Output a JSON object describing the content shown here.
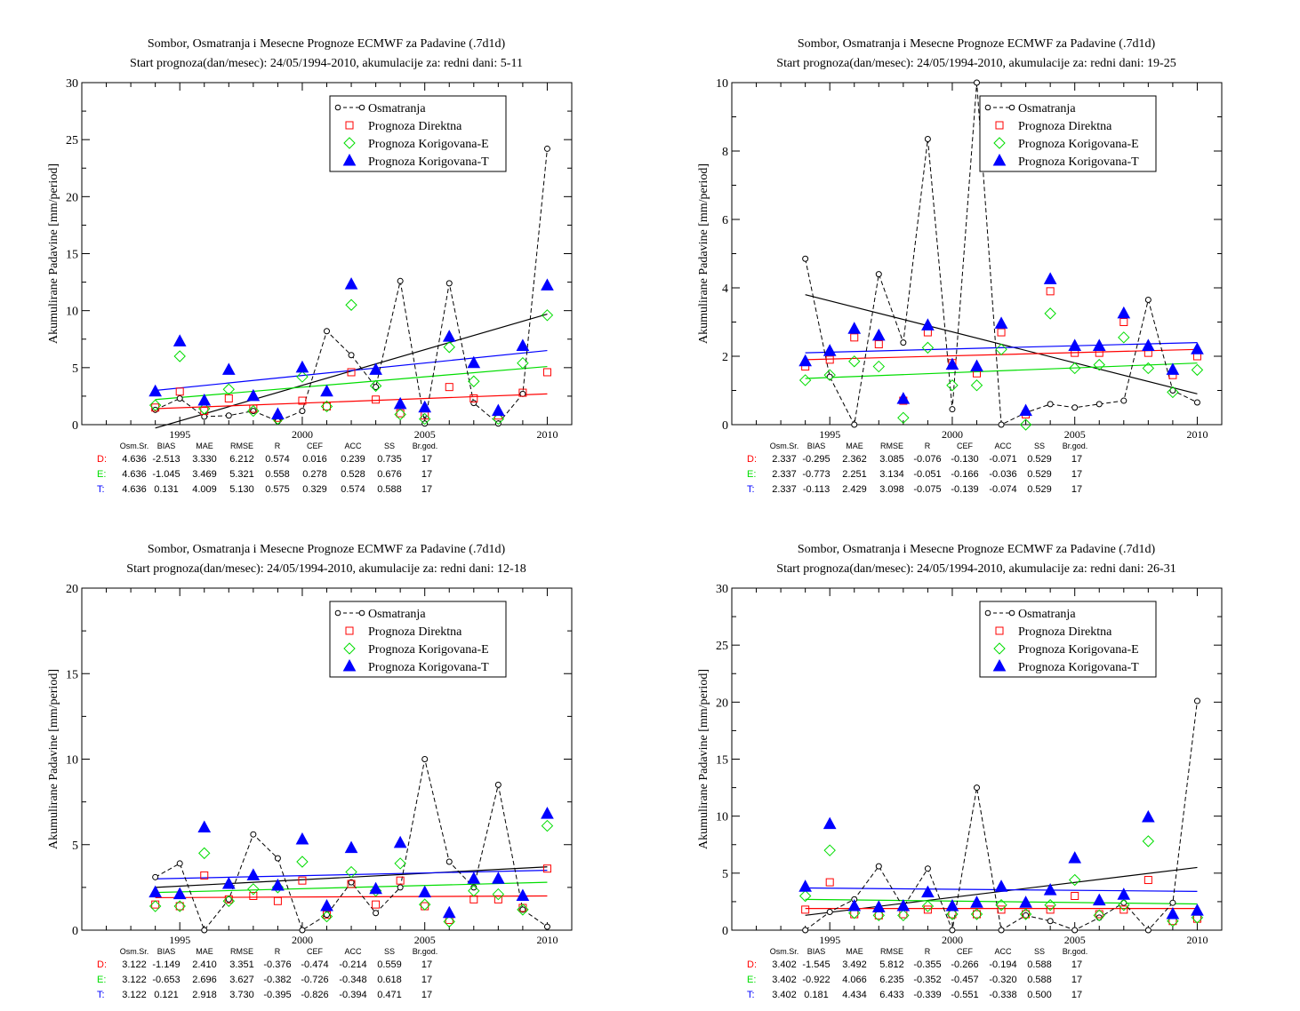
{
  "colors": {
    "osm": "#000000",
    "direct": "#ff0000",
    "korE": "#00dd00",
    "korT": "#0000ff"
  },
  "legend": [
    "Osmatranja",
    "Prognoza Direktna",
    "Prognoza Korigovana-E",
    "Prognoza Korigovana-T"
  ],
  "stat_headers": [
    "Osm.Sr.",
    "BIAS",
    "MAE",
    "RMSE",
    "R",
    "CEF",
    "ACC",
    "SS",
    "Br.god."
  ],
  "chart_data": [
    {
      "type": "scatter",
      "title": "Sombor, Osmatranja i Mesecne Prognoze ECMWF za Padavine (.7d1d)",
      "subtitle": "Start prognoza(dan/mesec): 24/05/1994-2010, akumulacije za: redni dani: 5-11",
      "ylabel": "Akumulirane Padavine [mm/period]",
      "xlim": [
        1991,
        2011
      ],
      "ylim": [
        0,
        30
      ],
      "xticks": [
        1995,
        2000,
        2005,
        2010
      ],
      "yticks": [
        0,
        5,
        10,
        15,
        20,
        25,
        30
      ],
      "x": [
        1994,
        1995,
        1996,
        1997,
        1998,
        1999,
        2000,
        2001,
        2002,
        2003,
        2004,
        2005,
        2006,
        2007,
        2008,
        2009,
        2010
      ],
      "series": [
        {
          "name": "Osmatranja",
          "values": [
            1.3,
            2.3,
            0.7,
            0.8,
            1.2,
            0.3,
            1.2,
            8.2,
            6.1,
            3.3,
            12.6,
            0.1,
            12.4,
            1.9,
            0.1,
            2.7,
            24.2
          ]
        },
        {
          "name": "Prognoza Direktna",
          "values": [
            1.5,
            2.9,
            1.2,
            2.3,
            1.4,
            0.6,
            2.1,
            1.6,
            4.6,
            2.2,
            1.0,
            0.8,
            3.3,
            2.3,
            0.8,
            2.8,
            4.6
          ]
        },
        {
          "name": "Prognoza Korigovana-E",
          "values": [
            1.7,
            6.0,
            1.4,
            3.1,
            1.2,
            0.5,
            4.2,
            1.6,
            10.5,
            3.4,
            0.9,
            0.5,
            6.8,
            3.8,
            0.5,
            5.4,
            9.6
          ]
        },
        {
          "name": "Prognoza Korigovana-T",
          "values": [
            2.9,
            7.3,
            2.1,
            4.8,
            2.5,
            0.9,
            5.0,
            2.9,
            12.3,
            4.8,
            1.8,
            1.5,
            7.7,
            5.4,
            1.2,
            6.9,
            12.2
          ]
        }
      ],
      "trends": {
        "osm": [
          -0.3,
          9.7
        ],
        "direct": [
          1.4,
          2.7
        ],
        "korE": [
          2.2,
          5.1
        ],
        "korT": [
          3.0,
          6.5
        ]
      },
      "stats": {
        "D": [
          "4.636",
          "-2.513",
          "3.330",
          "6.212",
          "0.574",
          "0.016",
          "0.239",
          "0.735",
          "17"
        ],
        "E": [
          "4.636",
          "-1.045",
          "3.469",
          "5.321",
          "0.558",
          "0.278",
          "0.528",
          "0.676",
          "17"
        ],
        "T": [
          "4.636",
          "0.131",
          "4.009",
          "5.130",
          "0.575",
          "0.329",
          "0.574",
          "0.588",
          "17"
        ]
      }
    },
    {
      "type": "scatter",
      "title": "Sombor, Osmatranja i Mesecne Prognoze ECMWF za Padavine (.7d1d)",
      "subtitle": "Start prognoza(dan/mesec): 24/05/1994-2010, akumulacije za: redni dani: 19-25",
      "ylabel": "Akumulirane Padavine [mm/period]",
      "xlim": [
        1991,
        2011
      ],
      "ylim": [
        0,
        10
      ],
      "xticks": [
        1995,
        2000,
        2005,
        2010
      ],
      "yticks": [
        0,
        2,
        4,
        6,
        8,
        10
      ],
      "x": [
        1994,
        1995,
        1996,
        1997,
        1998,
        1999,
        2000,
        2001,
        2002,
        2003,
        2004,
        2005,
        2006,
        2007,
        2008,
        2009,
        2010
      ],
      "series": [
        {
          "name": "Osmatranja",
          "values": [
            4.85,
            1.4,
            0.0,
            4.4,
            2.4,
            8.35,
            0.45,
            10.0,
            0.0,
            0.35,
            0.6,
            0.5,
            0.6,
            0.7,
            3.65,
            1.0,
            0.65
          ]
        },
        {
          "name": "Prognoza Direktna",
          "values": [
            1.7,
            1.9,
            2.55,
            2.35,
            0.7,
            2.7,
            1.8,
            1.5,
            2.7,
            0.3,
            3.9,
            2.1,
            2.1,
            3.0,
            2.1,
            1.45,
            2.0
          ]
        },
        {
          "name": "Prognoza Korigovana-E",
          "values": [
            1.3,
            1.45,
            1.85,
            1.7,
            0.2,
            2.25,
            1.15,
            1.15,
            2.2,
            0.0,
            3.25,
            1.65,
            1.75,
            2.55,
            1.65,
            0.95,
            1.6
          ]
        },
        {
          "name": "Prognoza Korigovana-T",
          "values": [
            1.85,
            2.15,
            2.8,
            2.6,
            0.75,
            2.9,
            1.75,
            1.7,
            2.95,
            0.4,
            4.25,
            2.3,
            2.3,
            3.25,
            2.3,
            1.6,
            2.2
          ]
        }
      ],
      "trends": {
        "osm": [
          3.8,
          0.9
        ],
        "direct": [
          1.9,
          2.2
        ],
        "korE": [
          1.35,
          1.8
        ],
        "korT": [
          2.1,
          2.4
        ]
      },
      "stats": {
        "D": [
          "2.337",
          "-0.295",
          "2.362",
          "3.085",
          "-0.076",
          "-0.130",
          "-0.071",
          "0.529",
          "17"
        ],
        "E": [
          "2.337",
          "-0.773",
          "2.251",
          "3.134",
          "-0.051",
          "-0.166",
          "-0.036",
          "0.529",
          "17"
        ],
        "T": [
          "2.337",
          "-0.113",
          "2.429",
          "3.098",
          "-0.075",
          "-0.139",
          "-0.074",
          "0.529",
          "17"
        ]
      }
    },
    {
      "type": "scatter",
      "title": "Sombor, Osmatranja i Mesecne Prognoze ECMWF za Padavine (.7d1d)",
      "subtitle": "Start prognoza(dan/mesec): 24/05/1994-2010, akumulacije za: redni dani: 12-18",
      "ylabel": "Akumulirane Padavine [mm/period]",
      "xlim": [
        1991,
        2011
      ],
      "ylim": [
        0,
        20
      ],
      "xticks": [
        1995,
        2000,
        2005,
        2010
      ],
      "yticks": [
        0,
        5,
        10,
        15,
        20
      ],
      "x": [
        1994,
        1995,
        1996,
        1997,
        1998,
        1999,
        2000,
        2001,
        2002,
        2003,
        2004,
        2005,
        2006,
        2007,
        2008,
        2009,
        2010
      ],
      "series": [
        {
          "name": "Osmatranja",
          "values": [
            3.1,
            3.9,
            0.0,
            1.8,
            5.6,
            4.2,
            0.0,
            0.9,
            2.8,
            1.0,
            2.5,
            10.0,
            4.0,
            2.5,
            8.5,
            1.2,
            0.2
          ]
        },
        {
          "name": "Prognoza Direktna",
          "values": [
            1.5,
            1.4,
            3.2,
            1.8,
            2.0,
            1.7,
            2.9,
            0.9,
            2.7,
            1.5,
            2.9,
            1.4,
            0.6,
            1.8,
            1.8,
            1.3,
            3.6
          ]
        },
        {
          "name": "Prognoza Korigovana-E",
          "values": [
            1.4,
            1.4,
            4.5,
            1.7,
            2.4,
            2.5,
            4.0,
            0.8,
            3.4,
            2.3,
            3.9,
            1.5,
            0.5,
            2.3,
            2.1,
            1.2,
            6.1
          ]
        },
        {
          "name": "Prognoza Korigovana-T",
          "values": [
            2.2,
            2.1,
            6.0,
            2.7,
            3.2,
            2.6,
            5.3,
            1.4,
            4.8,
            2.4,
            5.1,
            2.2,
            1.0,
            3.0,
            3.0,
            2.0,
            6.8
          ]
        }
      ],
      "trends": {
        "osm": [
          2.5,
          3.7
        ],
        "direct": [
          1.9,
          2.0
        ],
        "korE": [
          2.2,
          2.8
        ],
        "korT": [
          3.0,
          3.5
        ]
      },
      "stats": {
        "D": [
          "3.122",
          "-1.149",
          "2.410",
          "3.351",
          "-0.376",
          "-0.474",
          "-0.214",
          "0.559",
          "17"
        ],
        "E": [
          "3.122",
          "-0.653",
          "2.696",
          "3.627",
          "-0.382",
          "-0.726",
          "-0.348",
          "0.618",
          "17"
        ],
        "T": [
          "3.122",
          "0.121",
          "2.918",
          "3.730",
          "-0.395",
          "-0.826",
          "-0.394",
          "0.471",
          "17"
        ]
      }
    },
    {
      "type": "scatter",
      "title": "Sombor, Osmatranja i Mesecne Prognoze ECMWF za Padavine (.7d1d)",
      "subtitle": "Start prognoza(dan/mesec): 24/05/1994-2010, akumulacije za: redni dani: 26-31",
      "ylabel": "Akumulirane Padavine [mm/period]",
      "xlim": [
        1991,
        2011
      ],
      "ylim": [
        0,
        30
      ],
      "xticks": [
        1995,
        2000,
        2005,
        2010
      ],
      "yticks": [
        0,
        5,
        10,
        15,
        20,
        25,
        30
      ],
      "x": [
        1994,
        1995,
        1996,
        1997,
        1998,
        1999,
        2000,
        2001,
        2002,
        2003,
        2004,
        2005,
        2006,
        2007,
        2008,
        2009,
        2010
      ],
      "series": [
        {
          "name": "Osmatranja",
          "values": [
            0.0,
            1.6,
            2.7,
            5.6,
            2.0,
            5.4,
            0.0,
            12.5,
            0.0,
            1.3,
            0.8,
            0.0,
            1.1,
            2.4,
            0.0,
            2.4,
            20.1
          ]
        },
        {
          "name": "Prognoza Direktna",
          "values": [
            1.8,
            4.2,
            1.4,
            1.3,
            1.4,
            1.8,
            1.4,
            1.4,
            1.8,
            1.4,
            1.8,
            3.0,
            1.4,
            1.8,
            4.4,
            0.8,
            1.0
          ]
        },
        {
          "name": "Prognoza Korigovana-E",
          "values": [
            3.0,
            7.0,
            1.5,
            1.3,
            1.3,
            2.1,
            1.4,
            1.4,
            2.2,
            1.4,
            2.2,
            4.4,
            1.3,
            2.2,
            7.8,
            0.8,
            1.1
          ]
        },
        {
          "name": "Prognoza Korigovana-T",
          "values": [
            3.8,
            9.3,
            2.1,
            2.0,
            2.1,
            3.3,
            2.1,
            2.4,
            3.8,
            2.4,
            3.5,
            6.3,
            2.6,
            3.1,
            9.9,
            1.4,
            1.7
          ]
        }
      ],
      "trends": {
        "osm": [
          1.3,
          5.5
        ],
        "direct": [
          1.9,
          1.9
        ],
        "korE": [
          2.7,
          2.3
        ],
        "korT": [
          3.7,
          3.4
        ]
      },
      "stats": {
        "D": [
          "3.402",
          "-1.545",
          "3.492",
          "5.812",
          "-0.355",
          "-0.266",
          "-0.194",
          "0.588",
          "17"
        ],
        "E": [
          "3.402",
          "-0.922",
          "4.066",
          "6.235",
          "-0.352",
          "-0.457",
          "-0.320",
          "0.588",
          "17"
        ],
        "T": [
          "3.402",
          "0.181",
          "4.434",
          "6.433",
          "-0.339",
          "-0.551",
          "-0.338",
          "0.500",
          "17"
        ]
      }
    }
  ]
}
